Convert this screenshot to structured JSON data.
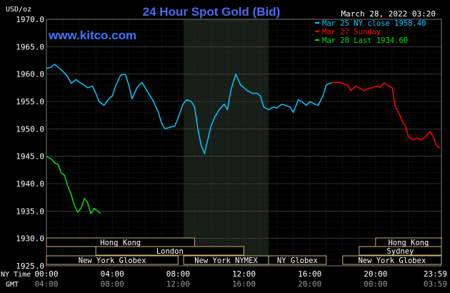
{
  "header": {
    "unit": "USD/oz",
    "title": "24 Hour Spot Gold (Bid)",
    "datetime": "March 28, 2022 03:20",
    "watermark": "www.kitco.com"
  },
  "legend": [
    {
      "label": "Mar 25 NY close 1958.40",
      "color": "#00c8ff"
    },
    {
      "label": "Mar 27 Sunday",
      "color": "#ff0000"
    },
    {
      "label": "Mar 28 Last 1934.60",
      "color": "#00dd00"
    }
  ],
  "sessions": [
    {
      "label": "Hong Kong",
      "start": "00:00",
      "end": "09:00",
      "row": 0
    },
    {
      "label": "London",
      "start": "03:00",
      "end": "12:00",
      "row": 1
    },
    {
      "label": "New York Globex",
      "start": "00:00",
      "end": "08:00",
      "row": 2
    },
    {
      "label": "New York NYMEX",
      "start": "08:20",
      "end": "13:30",
      "row": 2
    },
    {
      "label": "NY Globex",
      "start": "13:30",
      "end": "17:00",
      "row": 2
    },
    {
      "label": "Hong Kong",
      "start": "20:00",
      "end": "24:00",
      "row": 0
    },
    {
      "label": "Sydney",
      "start": "19:00",
      "end": "24:00",
      "row": 1
    },
    {
      "label": "New York Globex",
      "start": "18:00",
      "end": "24:00",
      "row": 2
    }
  ],
  "time_axis": {
    "row1_label": "NY Time",
    "row2_label": "GMT",
    "ny_ticks": [
      "00:00",
      "04:00",
      "08:00",
      "12:00",
      "16:00",
      "20:00",
      "23:59"
    ],
    "gmt_ticks": [
      "04:00",
      "08:00",
      "12:00",
      "16:00",
      "20:00",
      "00:00",
      "03:59"
    ]
  },
  "chart_data": {
    "type": "line",
    "title": "24 Hour Spot Gold (Bid)",
    "ylabel": "USD/oz",
    "ylim": [
      1925,
      1970
    ],
    "yticks": [
      "1970.0",
      "1965.0",
      "1960.0",
      "1955.0",
      "1950.0",
      "1945.0",
      "1940.0",
      "1935.0",
      "1930.0",
      "1925.0"
    ],
    "xlim_hours": [
      0,
      24
    ],
    "grid": true,
    "highlight_hours": [
      8.33,
      13.5
    ],
    "series": [
      {
        "name": "Mar 25 NY close 1958.40",
        "color": "#00c8ff",
        "x": [
          0,
          0.3,
          0.5,
          0.8,
          1.0,
          1.3,
          1.5,
          1.8,
          2.0,
          2.3,
          2.5,
          2.8,
          3.0,
          3.2,
          3.5,
          3.8,
          4.0,
          4.2,
          4.5,
          4.8,
          5.0,
          5.2,
          5.5,
          5.8,
          6.0,
          6.2,
          6.5,
          6.8,
          7.0,
          7.2,
          7.5,
          7.8,
          8.0,
          8.3,
          8.5,
          8.8,
          9.0,
          9.2,
          9.4,
          9.6,
          9.8,
          10.0,
          10.2,
          10.5,
          10.8,
          11.0,
          11.2,
          11.5,
          11.8,
          12.0,
          12.2,
          12.5,
          12.8,
          13.0,
          13.2,
          13.5,
          13.8,
          14.0,
          14.3,
          14.5,
          14.8,
          15.0,
          15.3,
          15.5,
          15.8,
          16.0,
          16.3,
          16.5,
          16.8,
          17.0,
          17.3
        ],
        "y": [
          1961.0,
          1961.3,
          1961.8,
          1961.0,
          1960.5,
          1959.5,
          1958.3,
          1959.0,
          1958.5,
          1958.0,
          1957.5,
          1957.8,
          1956.5,
          1955.0,
          1954.3,
          1955.5,
          1956.0,
          1957.8,
          1959.8,
          1960.0,
          1958.0,
          1955.5,
          1957.5,
          1958.5,
          1957.5,
          1956.5,
          1955.0,
          1953.0,
          1951.0,
          1950.0,
          1950.3,
          1950.5,
          1952.0,
          1954.5,
          1955.3,
          1955.0,
          1954.0,
          1950.0,
          1947.0,
          1945.5,
          1948.0,
          1950.5,
          1952.0,
          1953.5,
          1954.5,
          1953.5,
          1957.0,
          1960.0,
          1958.0,
          1957.5,
          1957.0,
          1956.5,
          1956.5,
          1956.0,
          1954.0,
          1953.5,
          1954.0,
          1953.8,
          1954.5,
          1954.3,
          1954.0,
          1953.0,
          1955.3,
          1955.0,
          1954.3,
          1955.0,
          1954.5,
          1954.3,
          1956.0,
          1958.0,
          1958.4
        ]
      },
      {
        "name": "Mar 27 Sunday",
        "color": "#ff0000",
        "x": [
          17.3,
          17.6,
          17.8,
          18.0,
          18.3,
          18.5,
          18.8,
          19.0,
          19.3,
          19.5,
          19.8,
          20.0,
          20.3,
          20.5,
          20.7,
          21.0,
          21.2,
          21.4,
          21.6,
          21.8,
          22.0,
          22.3,
          22.5,
          22.8,
          23.0,
          23.3,
          23.5,
          23.7,
          23.9
        ],
        "y": [
          1958.4,
          1958.5,
          1958.5,
          1958.3,
          1958.0,
          1957.0,
          1957.8,
          1957.5,
          1957.0,
          1957.3,
          1957.5,
          1957.8,
          1957.6,
          1958.4,
          1958.0,
          1957.5,
          1954.0,
          1953.0,
          1951.5,
          1950.5,
          1948.5,
          1948.0,
          1948.3,
          1948.0,
          1948.5,
          1949.5,
          1948.5,
          1947.0,
          1946.5
        ]
      },
      {
        "name": "Mar 28 Last 1934.60",
        "color": "#00dd00",
        "x": [
          0,
          0.3,
          0.5,
          0.7,
          0.9,
          1.1,
          1.3,
          1.5,
          1.7,
          1.9,
          2.1,
          2.3,
          2.5,
          2.7,
          2.9,
          3.1,
          3.3
        ],
        "y": [
          1945.0,
          1944.5,
          1943.8,
          1943.5,
          1942.0,
          1941.5,
          1939.5,
          1938.0,
          1936.0,
          1934.8,
          1935.5,
          1937.3,
          1936.5,
          1934.5,
          1935.5,
          1935.0,
          1934.6
        ]
      }
    ]
  }
}
